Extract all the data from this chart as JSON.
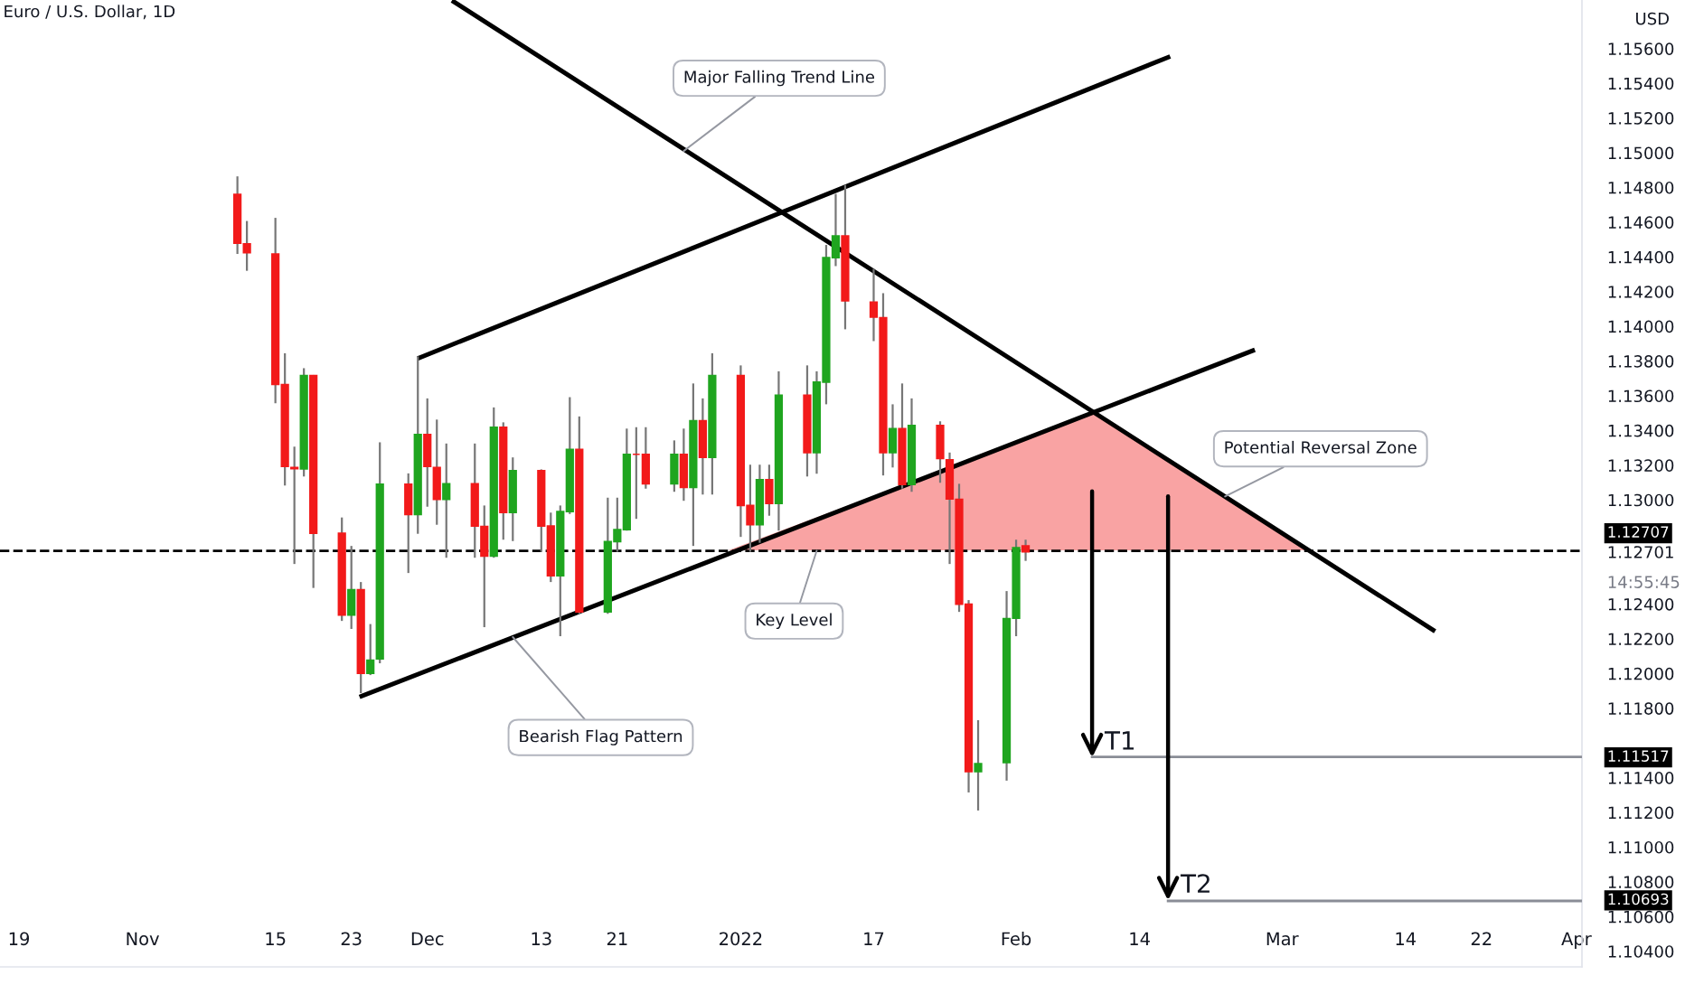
{
  "chart_data": {
    "type": "candlestick",
    "title": "Euro / U.S. Dollar, 1D",
    "x": [
      "2021-11-11",
      "2021-11-12",
      "2021-11-15",
      "2021-11-16",
      "2021-11-17",
      "2021-11-18",
      "2021-11-19",
      "2021-11-22",
      "2021-11-23",
      "2021-11-24",
      "2021-11-25",
      "2021-11-26",
      "2021-11-29",
      "2021-11-30",
      "2021-12-01",
      "2021-12-02",
      "2021-12-03",
      "2021-12-06",
      "2021-12-07",
      "2021-12-08",
      "2021-12-09",
      "2021-12-10",
      "2021-12-13",
      "2021-12-14",
      "2021-12-15",
      "2021-12-16",
      "2021-12-17",
      "2021-12-20",
      "2021-12-21",
      "2021-12-22",
      "2021-12-23",
      "2021-12-24",
      "2021-12-27",
      "2021-12-28",
      "2021-12-29",
      "2021-12-30",
      "2021-12-31",
      "2022-01-03",
      "2022-01-04",
      "2022-01-05",
      "2022-01-06",
      "2022-01-07",
      "2022-01-10",
      "2022-01-11",
      "2022-01-12",
      "2022-01-13",
      "2022-01-14",
      "2022-01-17",
      "2022-01-18",
      "2022-01-19",
      "2022-01-20",
      "2022-01-21",
      "2022-01-24",
      "2022-01-25",
      "2022-01-26",
      "2022-01-27",
      "2022-01-28",
      "2022-01-31",
      "2022-02-01",
      "2022-02-02"
    ],
    "ohlc": [
      [
        1.1476,
        1.14864,
        1.14417,
        1.14479
      ],
      [
        1.14476,
        1.14607,
        1.1432,
        1.14424
      ],
      [
        1.14417,
        1.14625,
        1.13557,
        1.13665
      ],
      [
        1.13665,
        1.13845,
        1.13083,
        1.13193
      ],
      [
        1.13187,
        1.13307,
        1.12631,
        1.1318
      ],
      [
        1.13179,
        1.13759,
        1.13135,
        1.13717
      ],
      [
        1.13717,
        1.1372,
        1.12493,
        1.12808
      ],
      [
        1.12808,
        1.12899,
        1.12303,
        1.12337
      ],
      [
        1.12337,
        1.12735,
        1.12257,
        1.12483
      ],
      [
        1.12483,
        1.12527,
        1.11887,
        1.12001
      ],
      [
        1.12001,
        1.12285,
        1.11991,
        1.12077
      ],
      [
        1.12084,
        1.13332,
        1.12059,
        1.13091
      ],
      [
        1.13091,
        1.13153,
        1.12579,
        1.12916
      ],
      [
        1.12916,
        1.13827,
        1.12805,
        1.13377
      ],
      [
        1.13377,
        1.13585,
        1.12961,
        1.13193
      ],
      [
        1.13187,
        1.13463,
        1.12857,
        1.13003
      ],
      [
        1.13003,
        1.13325,
        1.12667,
        1.13093
      ],
      [
        1.13093,
        1.13325,
        1.12667,
        1.1285
      ],
      [
        1.12847,
        1.12968,
        1.12267,
        1.12677
      ],
      [
        1.12677,
        1.13533,
        1.12667,
        1.13419
      ],
      [
        1.13419,
        1.13447,
        1.12771,
        1.12927
      ],
      [
        1.12927,
        1.13245,
        1.12763,
        1.13169
      ],
      [
        1.13169,
        1.13176,
        1.12701,
        1.1285
      ],
      [
        1.1285,
        1.12927,
        1.12527,
        1.12563
      ],
      [
        1.12563,
        1.12968,
        1.12215,
        1.12933
      ],
      [
        1.12933,
        1.13592,
        1.12919,
        1.13291
      ],
      [
        1.13291,
        1.13481,
        1.12344,
        1.12355
      ],
      [
        1.12355,
        1.13013,
        1.12344,
        1.1276
      ],
      [
        1.1276,
        1.13013,
        1.12701,
        1.12829
      ],
      [
        1.12829,
        1.13411,
        1.12823,
        1.13263
      ],
      [
        1.13263,
        1.13419,
        1.12891,
        1.13263
      ],
      [
        1.13263,
        1.13419,
        1.13065,
        1.13093
      ],
      [
        1.13093,
        1.13343,
        1.13047,
        1.13263
      ],
      [
        1.13263,
        1.13411,
        1.12995,
        1.13072
      ],
      [
        1.13072,
        1.13671,
        1.12735,
        1.13457
      ],
      [
        1.13457,
        1.13585,
        1.13031,
        1.13245
      ],
      [
        1.13245,
        1.13845,
        1.13031,
        1.13717
      ],
      [
        1.13717,
        1.13775,
        1.12787,
        1.12968
      ],
      [
        1.12968,
        1.13203,
        1.12701,
        1.12857
      ],
      [
        1.12857,
        1.13203,
        1.12753,
        1.13117
      ],
      [
        1.13117,
        1.13203,
        1.12909,
        1.12979
      ],
      [
        1.12979,
        1.13741,
        1.12823,
        1.13603
      ],
      [
        1.13603,
        1.13775,
        1.13135,
        1.13273
      ],
      [
        1.13273,
        1.13741,
        1.13151,
        1.13679
      ],
      [
        1.13679,
        1.14469,
        1.13551,
        1.14396
      ],
      [
        1.14396,
        1.14763,
        1.14347,
        1.14521
      ],
      [
        1.14521,
        1.14815,
        1.13983,
        1.14147
      ],
      [
        1.1414,
        1.14331,
        1.13915,
        1.14053
      ],
      [
        1.1405,
        1.14191,
        1.13141,
        1.13273
      ],
      [
        1.13273,
        1.13551,
        1.13187,
        1.13411
      ],
      [
        1.13411,
        1.13671,
        1.13065,
        1.13089
      ],
      [
        1.13089,
        1.13585,
        1.13047,
        1.13429
      ],
      [
        1.13429,
        1.13453,
        1.13099,
        1.13239
      ],
      [
        1.13231,
        1.13273,
        1.12631,
        1.13006
      ],
      [
        1.13003,
        1.13093,
        1.12355,
        1.12399
      ],
      [
        1.12399,
        1.12423,
        1.11315,
        1.11435
      ],
      [
        1.11435,
        1.11731,
        1.11211,
        1.11481
      ],
      [
        1.11487,
        1.12475,
        1.11383,
        1.12316
      ],
      [
        1.12319,
        1.12771,
        1.12215,
        1.12725
      ],
      [
        1.12735,
        1.12771,
        1.12649,
        1.12701
      ]
    ],
    "colors": [
      "#f21a1a",
      "#f21a1a",
      "#f21a1a",
      "#f21a1a",
      "#f21a1a",
      "#1fa51f",
      "#f21a1a",
      "#f21a1a",
      "#1fa51f",
      "#f21a1a",
      "#1fa51f",
      "#1fa51f",
      "#f21a1a",
      "#1fa51f",
      "#f21a1a",
      "#f21a1a",
      "#1fa51f",
      "#f21a1a",
      "#f21a1a",
      "#1fa51f",
      "#f21a1a",
      "#1fa51f",
      "#f21a1a",
      "#f21a1a",
      "#1fa51f",
      "#1fa51f",
      "#f21a1a",
      "#1fa51f",
      "#1fa51f",
      "#1fa51f",
      "#f21a1a",
      "#f21a1a",
      "#1fa51f",
      "#f21a1a",
      "#1fa51f",
      "#f21a1a",
      "#1fa51f",
      "#f21a1a",
      "#f21a1a",
      "#1fa51f",
      "#f21a1a",
      "#1fa51f",
      "#f21a1a",
      "#1fa51f",
      "#1fa51f",
      "#1fa51f",
      "#f21a1a",
      "#f21a1a",
      "#f21a1a",
      "#1fa51f",
      "#f21a1a",
      "#1fa51f",
      "#f21a1a",
      "#f21a1a",
      "#f21a1a",
      "#f21a1a",
      "#1fa51f",
      "#1fa51f",
      "#1fa51f",
      "#f21a1a"
    ],
    "series": [
      {
        "type": "area",
        "color": "#f9a3a3",
        "x": [
          "2022-01-01T17:00",
          "2022-02-09T07:00",
          "2022-03-04"
        ],
        "values": [
          1.1271,
          1.135,
          1.1271
        ]
      },
      {
        "type": "line",
        "color": "#000000",
        "x": [
          "2021-12-03T19:00",
          "2022-03-16T22:00"
        ],
        "values": [
          1.1587,
          1.1225
        ]
      },
      {
        "type": "line",
        "color": "#000000",
        "x": [
          "2021-11-30T05:00",
          "2022-02-17"
        ],
        "values": [
          1.1382,
          1.1555
        ]
      },
      {
        "type": "line",
        "color": "#000000",
        "x": [
          "2021-11-24T02:00",
          "2022-02-25T22:00"
        ],
        "values": [
          1.1187,
          1.1386
        ]
      },
      {
        "type": "line",
        "color": "#8a8d96",
        "x": [
          "2022-02-09",
          "2022-04-01T14:00"
        ],
        "values": [
          1.1152,
          1.1152
        ]
      },
      {
        "type": "line",
        "color": "#8a8d96",
        "x": [
          "2022-02-17",
          "2022-04-01T14:00"
        ],
        "values": [
          1.1069,
          1.1069
        ]
      }
    ],
    "ref_lines": [
      {
        "axis": "y",
        "value": 1.12707,
        "label": "1.12707",
        "color": "#000000",
        "line_style": "dashed"
      }
    ],
    "annotations": [
      {
        "text": "Major Falling Trend Line",
        "x": "2021-12-28",
        "y": 1.1501
      },
      {
        "text": "Potential Reversal Zone",
        "x": "2022-02-23",
        "y": 1.1302
      },
      {
        "text": "Key Level",
        "x": "2022-01-11",
        "y": 1.12707
      },
      {
        "text": "Bearish Flag Pattern",
        "x": "2021-12-10",
        "y": 1.1221
      },
      {
        "text": "T1",
        "x": "2022-02-09",
        "y": 1.11517
      },
      {
        "text": "T2",
        "x": "2022-02-17",
        "y": 1.10693
      },
      {
        "text": "1.11517",
        "x": "2022-04-01T14:00",
        "y": 1.11517
      },
      {
        "text": "1.10693",
        "x": "2022-04-01T14:00",
        "y": 1.10693
      },
      "14:55:45",
      "USD"
    ],
    "xlim": [
      "2021-10-17",
      "2022-04-01T14:00"
    ],
    "ylim": [
      1.1031,
      1.1588
    ],
    "xticks": [
      {
        "value": "2021-10-19",
        "label": "19"
      },
      {
        "value": "2021-11-01",
        "label": "Nov"
      },
      {
        "value": "2021-11-15",
        "label": "15"
      },
      {
        "value": "2021-11-23",
        "label": "23"
      },
      {
        "value": "2021-12-01",
        "label": "Dec"
      },
      {
        "value": "2021-12-13",
        "label": "13"
      },
      {
        "value": "2021-12-21",
        "label": "21"
      },
      {
        "value": "2022-01-03",
        "label": "2022"
      },
      {
        "value": "2022-01-17",
        "label": "17"
      },
      {
        "value": "2022-02-01",
        "label": "Feb"
      },
      {
        "value": "2022-02-14",
        "label": "14"
      },
      {
        "value": "2022-03-01",
        "label": "Mar"
      },
      {
        "value": "2022-03-14",
        "label": "14"
      },
      {
        "value": "2022-03-22",
        "label": "22"
      },
      {
        "value": "2022-04-01",
        "label": "Apr"
      }
    ],
    "yticks": [
      {
        "value": 1.104,
        "label": "1.10400"
      },
      {
        "value": 1.106,
        "label": "1.10600"
      },
      {
        "value": 1.108,
        "label": "1.10800"
      },
      {
        "value": 1.11,
        "label": "1.11000"
      },
      {
        "value": 1.112,
        "label": "1.11200"
      },
      {
        "value": 1.114,
        "label": "1.11400"
      },
      {
        "value": 1.118,
        "label": "1.11800"
      },
      {
        "value": 1.12,
        "label": "1.12000"
      },
      {
        "value": 1.122,
        "label": "1.12200"
      },
      {
        "value": 1.124,
        "label": "1.12400"
      },
      {
        "value": 1.12701,
        "label": "1.12701"
      },
      {
        "value": 1.13,
        "label": "1.13000"
      },
      {
        "value": 1.132,
        "label": "1.13200"
      },
      {
        "value": 1.134,
        "label": "1.13400"
      },
      {
        "value": 1.136,
        "label": "1.13600"
      },
      {
        "value": 1.138,
        "label": "1.13800"
      },
      {
        "value": 1.14,
        "label": "1.14000"
      },
      {
        "value": 1.142,
        "label": "1.14200"
      },
      {
        "value": 1.144,
        "label": "1.14400"
      },
      {
        "value": 1.146,
        "label": "1.14600"
      },
      {
        "value": 1.148,
        "label": "1.14800"
      },
      {
        "value": 1.15,
        "label": "1.15000"
      },
      {
        "value": 1.152,
        "label": "1.15200"
      },
      {
        "value": 1.154,
        "label": "1.15400"
      },
      {
        "value": 1.156,
        "label": "1.15600"
      }
    ],
    "grid": false
  }
}
